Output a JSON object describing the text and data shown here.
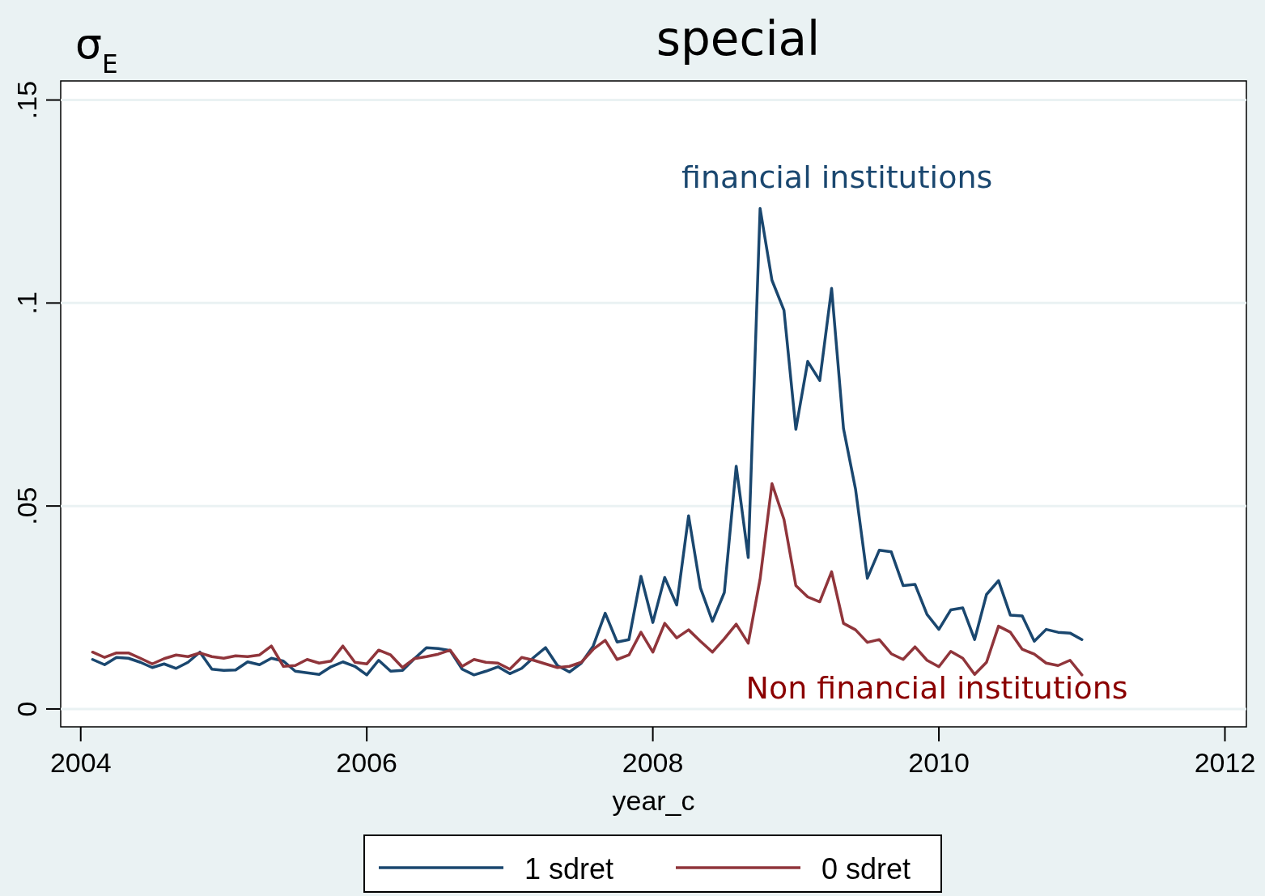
{
  "chart_data": {
    "type": "line",
    "title": "special",
    "ylabel": "σ$_{E}$",
    "xlabel": "year_c",
    "x": [
      2004.083,
      2004.167,
      2004.25,
      2004.333,
      2004.417,
      2004.5,
      2004.583,
      2004.667,
      2004.75,
      2004.833,
      2004.917,
      2005,
      2005.083,
      2005.167,
      2005.25,
      2005.333,
      2005.417,
      2005.5,
      2005.583,
      2005.667,
      2005.75,
      2005.833,
      2005.917,
      2006,
      2006.083,
      2006.167,
      2006.25,
      2006.333,
      2006.417,
      2006.5,
      2006.583,
      2006.667,
      2006.75,
      2006.833,
      2006.917,
      2007,
      2007.083,
      2007.167,
      2007.25,
      2007.333,
      2007.417,
      2007.5,
      2007.583,
      2007.667,
      2007.75,
      2007.833,
      2007.917,
      2008,
      2008.083,
      2008.167,
      2008.25,
      2008.333,
      2008.417,
      2008.5,
      2008.583,
      2008.667,
      2008.75,
      2008.833,
      2008.917,
      2009,
      2009.083,
      2009.167,
      2009.25,
      2009.333,
      2009.417,
      2009.5,
      2009.583,
      2009.667,
      2009.75,
      2009.833,
      2009.917,
      2010,
      2010.083,
      2010.167,
      2010.25,
      2010.333,
      2010.417,
      2010.5,
      2010.583,
      2010.667,
      2010.75,
      2010.833,
      2010.917,
      2011
    ],
    "series": [
      {
        "name": "1 sdret",
        "color": "#1a476f",
        "values": [
          0.0122,
          0.0109,
          0.0127,
          0.0125,
          0.0115,
          0.0102,
          0.0111,
          0.01,
          0.0115,
          0.014,
          0.0098,
          0.0095,
          0.0096,
          0.0116,
          0.0109,
          0.0125,
          0.0118,
          0.0093,
          0.0089,
          0.0085,
          0.0104,
          0.0116,
          0.0105,
          0.0084,
          0.012,
          0.0093,
          0.0095,
          0.0124,
          0.0151,
          0.0149,
          0.0144,
          0.0098,
          0.0084,
          0.0093,
          0.0104,
          0.0087,
          0.01,
          0.0127,
          0.0151,
          0.0107,
          0.0091,
          0.0113,
          0.0155,
          0.0236,
          0.0165,
          0.0171,
          0.0327,
          0.0213,
          0.0324,
          0.0256,
          0.0476,
          0.0298,
          0.0216,
          0.0287,
          0.0598,
          0.0373,
          0.1233,
          0.1056,
          0.0982,
          0.0689,
          0.0856,
          0.0809,
          0.1036,
          0.0691,
          0.0542,
          0.0322,
          0.0391,
          0.0387,
          0.0304,
          0.0307,
          0.0233,
          0.0196,
          0.0244,
          0.0249,
          0.0171,
          0.0282,
          0.0316,
          0.0231,
          0.0229,
          0.0167,
          0.0196,
          0.0189,
          0.0187,
          0.0171
        ]
      },
      {
        "name": "0 sdret",
        "color": "#90353b",
        "values": [
          0.014,
          0.0127,
          0.0138,
          0.0138,
          0.0125,
          0.0111,
          0.0124,
          0.0133,
          0.0129,
          0.0138,
          0.0129,
          0.0125,
          0.0131,
          0.0129,
          0.0133,
          0.0155,
          0.0105,
          0.0107,
          0.0122,
          0.0113,
          0.0118,
          0.0155,
          0.0115,
          0.0111,
          0.0145,
          0.0133,
          0.0102,
          0.0124,
          0.0129,
          0.0135,
          0.0145,
          0.0105,
          0.0122,
          0.0115,
          0.0113,
          0.0098,
          0.0127,
          0.012,
          0.0111,
          0.0102,
          0.0105,
          0.0115,
          0.0147,
          0.0169,
          0.0122,
          0.0133,
          0.0189,
          0.014,
          0.0211,
          0.0175,
          0.0195,
          0.0167,
          0.014,
          0.0173,
          0.0209,
          0.0162,
          0.032,
          0.0555,
          0.0467,
          0.0304,
          0.0276,
          0.0264,
          0.0338,
          0.0211,
          0.0195,
          0.0164,
          0.0171,
          0.0136,
          0.0122,
          0.0153,
          0.012,
          0.0104,
          0.0142,
          0.0125,
          0.0085,
          0.0115,
          0.0204,
          0.0189,
          0.0147,
          0.0135,
          0.0113,
          0.0107,
          0.012,
          0.0084
        ]
      }
    ],
    "annotations": [
      "financial institutions",
      "Non financial institutions"
    ],
    "xlim": [
      2003.86,
      2012.15
    ],
    "xticks": [
      2004,
      2006,
      2008,
      2010,
      2012
    ],
    "ylim": [
      -0.0044,
      0.1547
    ],
    "yticks": [
      {
        "value": 0,
        "label": "0"
      },
      {
        "value": 0.05,
        "label": ".05"
      },
      {
        "value": 0.1,
        "label": ".1"
      },
      {
        "value": 0.15,
        "label": ".15"
      }
    ],
    "grid": "y",
    "legend": "bottom"
  }
}
